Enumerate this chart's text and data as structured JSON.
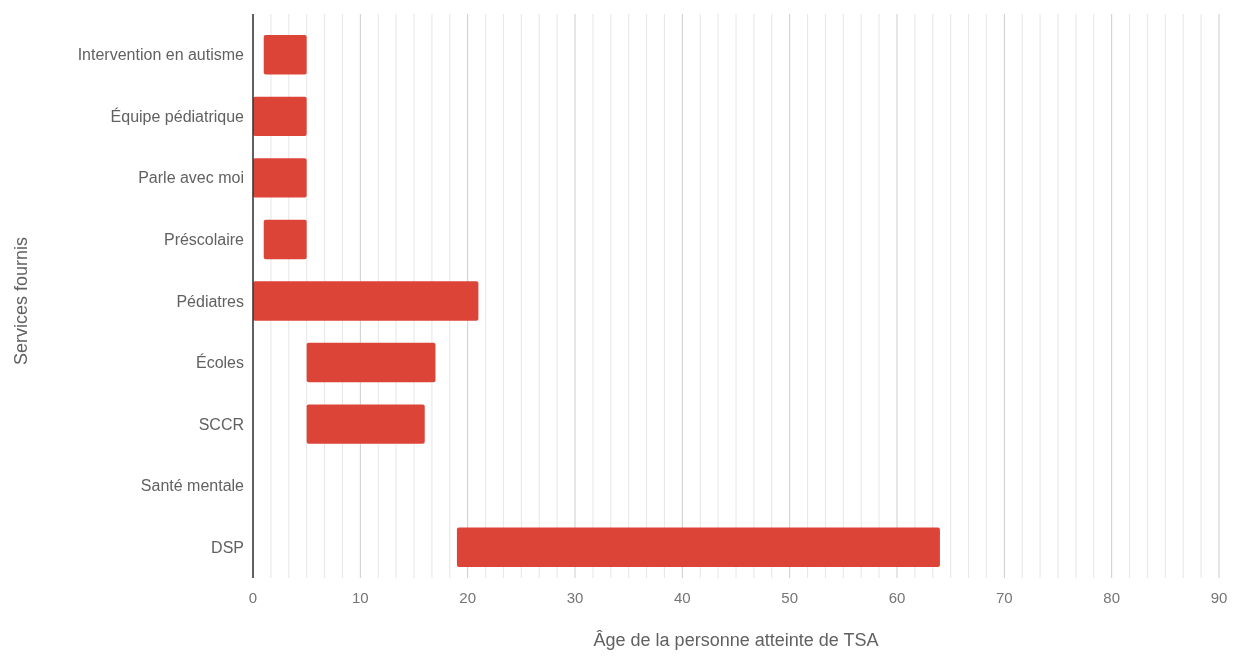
{
  "chart_data": {
    "type": "bar",
    "orientation": "horizontal",
    "xlabel": "Âge de la personne atteinte de TSA",
    "ylabel": "Services fournis",
    "categories": [
      "Intervention en autisme",
      "Équipe pédiatrique",
      "Parle avec moi",
      "Préscolaire",
      "Pédiatres",
      "Écoles",
      "SCCR",
      "Santé mentale",
      "DSP"
    ],
    "values": [
      4,
      5,
      5,
      4,
      21,
      12,
      11,
      null,
      45
    ],
    "base": [
      1,
      0,
      0,
      1,
      0,
      5,
      5,
      null,
      19
    ],
    "color": "#db4437",
    "xlim": [
      0,
      90
    ],
    "xticks": [
      0,
      {
        "value": 1.67,
        "label": null
      },
      {
        "value": 3.33,
        "label": null
      },
      {
        "value": 5,
        "label": null
      },
      {
        "value": 6.67,
        "label": null
      },
      {
        "value": 8.33,
        "label": null
      },
      10,
      {
        "value": 11.67,
        "label": null
      },
      {
        "value": 13.33,
        "label": null
      },
      {
        "value": 15,
        "label": null
      },
      {
        "value": 16.67,
        "label": null
      },
      {
        "value": 18.33,
        "label": null
      },
      20,
      {
        "value": 21.67,
        "label": null
      },
      {
        "value": 23.33,
        "label": null
      },
      {
        "value": 25,
        "label": null
      },
      {
        "value": 26.67,
        "label": null
      },
      {
        "value": 28.33,
        "label": null
      },
      30,
      {
        "value": 31.67,
        "label": null
      },
      {
        "value": 33.33,
        "label": null
      },
      {
        "value": 35,
        "label": null
      },
      {
        "value": 36.67,
        "label": null
      },
      {
        "value": 38.33,
        "label": null
      },
      40,
      {
        "value": 41.67,
        "label": null
      },
      {
        "value": 43.33,
        "label": null
      },
      {
        "value": 45,
        "label": null
      },
      {
        "value": 46.67,
        "label": null
      },
      {
        "value": 48.33,
        "label": null
      },
      50,
      {
        "value": 51.67,
        "label": null
      },
      {
        "value": 53.33,
        "label": null
      },
      {
        "value": 55,
        "label": null
      },
      {
        "value": 56.67,
        "label": null
      },
      {
        "value": 58.33,
        "label": null
      },
      60,
      {
        "value": 61.67,
        "label": null
      },
      {
        "value": 63.33,
        "label": null
      },
      {
        "value": 65,
        "label": null
      },
      {
        "value": 66.67,
        "label": null
      },
      {
        "value": 68.33,
        "label": null
      },
      70,
      {
        "value": 71.67,
        "label": null
      },
      {
        "value": 73.33,
        "label": null
      },
      {
        "value": 75,
        "label": null
      },
      {
        "value": 76.67,
        "label": null
      },
      {
        "value": 78.33,
        "label": null
      },
      80,
      {
        "value": 81.67,
        "label": null
      },
      {
        "value": 83.33,
        "label": null
      },
      {
        "value": 85,
        "label": null
      },
      {
        "value": 86.67,
        "label": null
      },
      {
        "value": 88.33,
        "label": null
      },
      90
    ],
    "grid": "x"
  }
}
